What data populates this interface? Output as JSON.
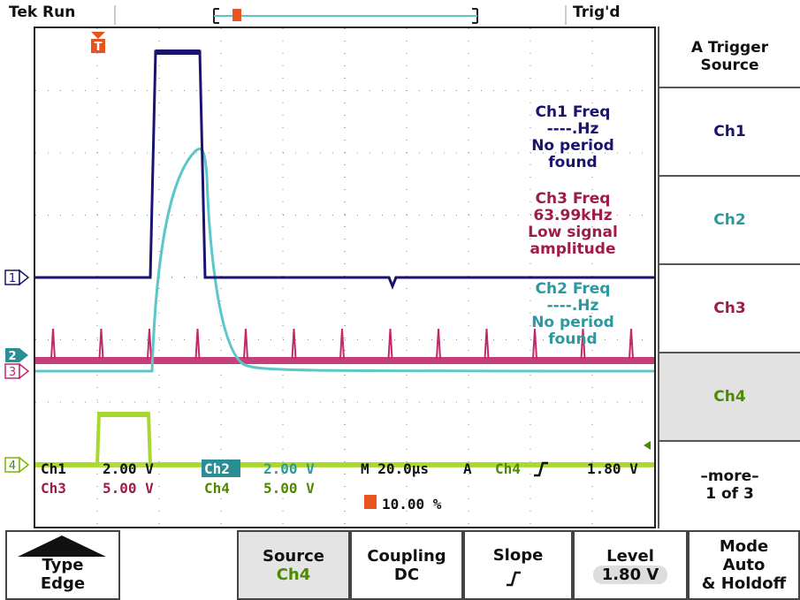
{
  "status": {
    "brand": "Tek",
    "run_state": "Run",
    "trigger_state": "Trig'd"
  },
  "colors": {
    "ch1": "#1a1470",
    "ch2": "#5cc6c8",
    "ch3": "#c02a6a",
    "ch4": "#a8d830",
    "trigger_marker": "#e8541e",
    "ch3_text": "#a01c48",
    "ch4_text": "#4e8a00",
    "ch2_text": "#2a9aa0"
  },
  "measurements": {
    "ch1": {
      "title": "Ch1 Freq",
      "value": "----.Hz",
      "note_line1": "No period",
      "note_line2": "found"
    },
    "ch3": {
      "title": "Ch3 Freq",
      "value": "63.99kHz",
      "note_line1": "Low signal",
      "note_line2": "amplitude"
    },
    "ch2": {
      "title": "Ch2 Freq",
      "value": "----.Hz",
      "note_line1": "No period",
      "note_line2": "found"
    }
  },
  "channel_markers": {
    "ch1": "1",
    "ch2": "2",
    "ch3": "3",
    "ch4": "4"
  },
  "readouts": {
    "ch1_label": "Ch1",
    "ch1_scale": "2.00 V",
    "ch2_label": "Ch2",
    "ch2_scale": "2.00 V",
    "ch3_label": "Ch3",
    "ch3_scale": "5.00 V",
    "ch4_label": "Ch4",
    "ch4_scale": "5.00 V",
    "timebase": "M 20.0µs",
    "trig_mode": "A",
    "trig_source": "Ch4",
    "trig_level": "1.80 V",
    "trig_position": "10.00 %"
  },
  "right_menu": {
    "title_line1": "A Trigger",
    "title_line2": "Source",
    "items": [
      "Ch1",
      "Ch2",
      "Ch3",
      "Ch4"
    ],
    "selected": "Ch4",
    "more_line1": "–more–",
    "more_line2": "1 of 3"
  },
  "bottom_menu": {
    "type": {
      "label": "Type",
      "value": "Edge"
    },
    "source": {
      "label": "Source",
      "value": "Ch4"
    },
    "coupling": {
      "label": "Coupling",
      "value": "DC"
    },
    "slope": {
      "label": "Slope"
    },
    "level": {
      "label": "Level",
      "value": "1.80 V"
    },
    "mode": {
      "line1": "Mode",
      "line2": "Auto",
      "line3": "& Holdoff"
    }
  },
  "trigger_icon": "T",
  "cursor_mark": "4-symbol"
}
